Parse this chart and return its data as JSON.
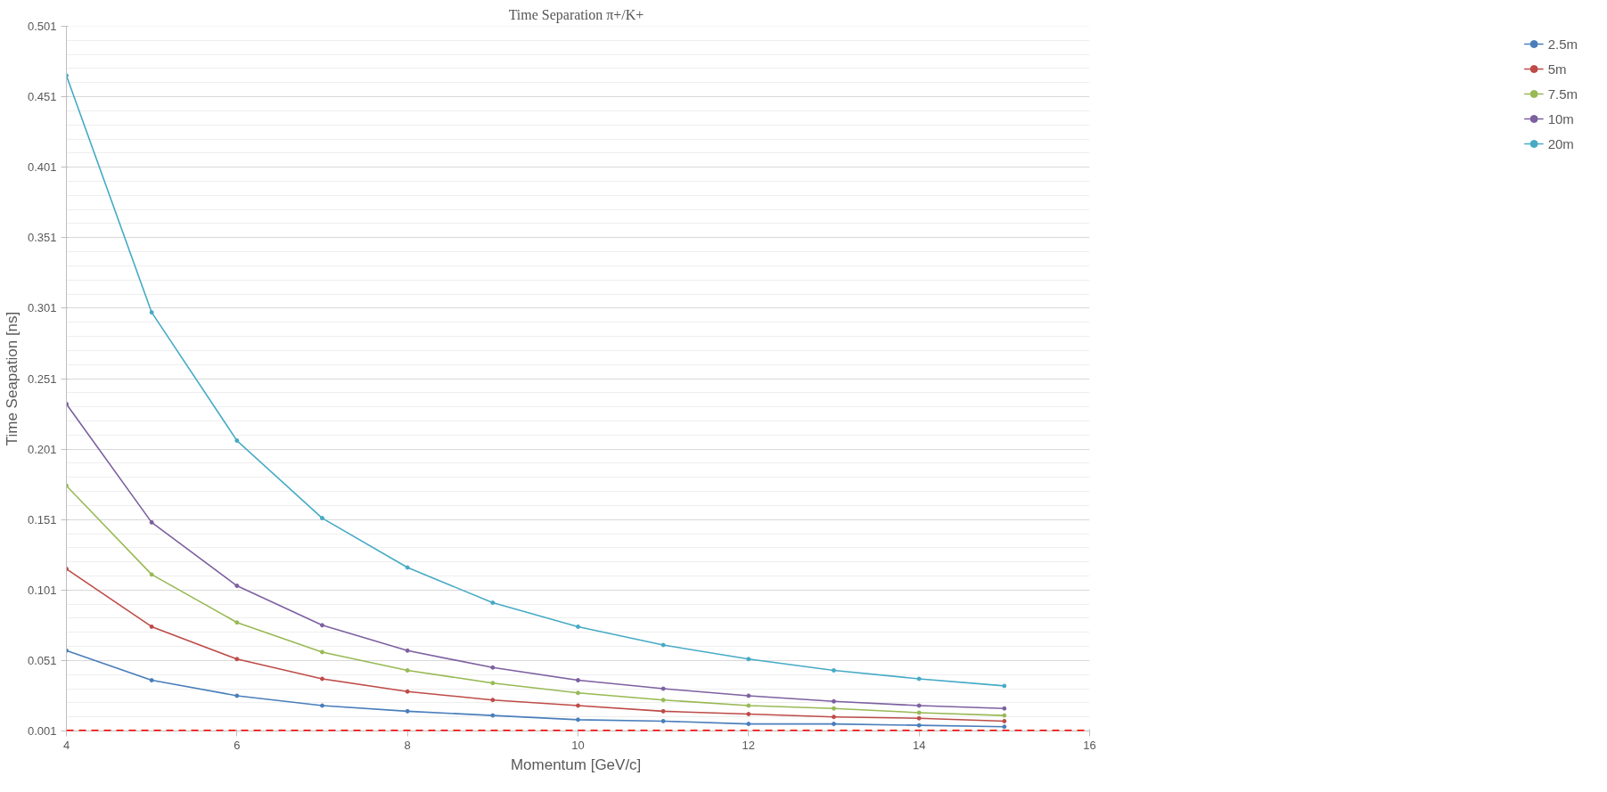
{
  "chart_data": {
    "type": "line",
    "title": "Time  Separation π+/K+",
    "xlabel": "Momentum  [GeV/c]",
    "ylabel": "Time Seapation [ns]",
    "x": [
      4,
      5,
      6,
      7,
      8,
      9,
      10,
      11,
      12,
      13,
      14,
      15
    ],
    "series": [
      {
        "name": "2.5m",
        "color": "#4a7ebb",
        "values": [
          0.058,
          0.037,
          0.026,
          0.019,
          0.015,
          0.012,
          0.009,
          0.008,
          0.006,
          0.006,
          0.005,
          0.004
        ]
      },
      {
        "name": "5m",
        "color": "#be4b48",
        "values": [
          0.116,
          0.075,
          0.052,
          0.038,
          0.029,
          0.023,
          0.019,
          0.015,
          0.013,
          0.011,
          0.01,
          0.008
        ]
      },
      {
        "name": "7.5m",
        "color": "#98b954",
        "values": [
          0.175,
          0.112,
          0.078,
          0.057,
          0.044,
          0.035,
          0.028,
          0.023,
          0.019,
          0.017,
          0.014,
          0.012
        ]
      },
      {
        "name": "10m",
        "color": "#7d60a0",
        "values": [
          0.233,
          0.149,
          0.104,
          0.076,
          0.058,
          0.046,
          0.037,
          0.031,
          0.026,
          0.022,
          0.019,
          0.017
        ]
      },
      {
        "name": "20m",
        "color": "#46aac5",
        "values": [
          0.466,
          0.298,
          0.207,
          0.152,
          0.117,
          0.092,
          0.075,
          0.062,
          0.052,
          0.044,
          0.038,
          0.033
        ]
      }
    ],
    "xlim": [
      4,
      16
    ],
    "xticks": [
      4,
      6,
      8,
      10,
      12,
      14,
      16
    ],
    "ylim": [
      0.001,
      0.501
    ],
    "yticks": [
      0.001,
      0.051,
      0.101,
      0.151,
      0.201,
      0.251,
      0.301,
      0.351,
      0.401,
      0.451,
      0.501
    ],
    "ref_lines": [
      {
        "axis": "y",
        "value": 0.001,
        "color": "#ff0000",
        "line_style": "dashed"
      }
    ],
    "grid": "y",
    "legend": "right",
    "marker": "circle",
    "line_style": "solid"
  }
}
